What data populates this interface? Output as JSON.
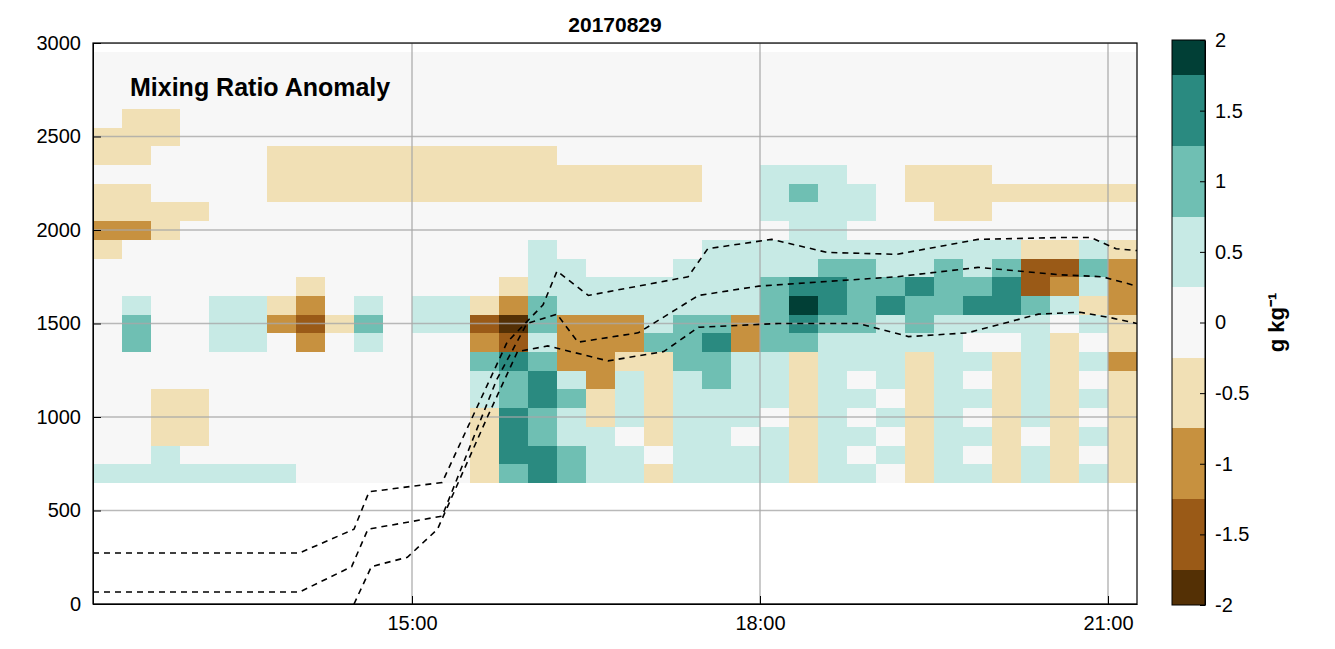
{
  "chart_data": {
    "type": "heatmap",
    "title": "20170829",
    "annotations": [
      "Mixing Ratio Anomaly"
    ],
    "xlim": [
      12.25,
      21.25
    ],
    "ylim": [
      0,
      3000
    ],
    "xticks": [
      {
        "value": 15,
        "label": "15:00"
      },
      {
        "value": 18,
        "label": "18:00"
      },
      {
        "value": 21,
        "label": "21:00"
      }
    ],
    "yticks": [
      0,
      500,
      1000,
      1500,
      2000,
      2500,
      3000
    ],
    "grid": true,
    "x_edges": [
      12.25,
      12.5,
      12.75,
      13,
      13.25,
      13.5,
      13.75,
      14,
      14.25,
      14.5,
      14.75,
      15,
      15.25,
      15.5,
      15.75,
      16,
      16.25,
      16.5,
      16.75,
      17,
      17.25,
      17.5,
      17.75,
      18,
      18.25,
      18.5,
      18.75,
      19,
      19.25,
      19.5,
      19.75,
      20,
      20.25,
      20.5,
      20.75,
      21,
      21.25
    ],
    "y_edges": [
      650,
      750,
      850,
      950,
      1050,
      1150,
      1250,
      1350,
      1450,
      1550,
      1650,
      1750,
      1850,
      1950,
      2050,
      2150,
      2250,
      2350,
      2450,
      2550,
      2650,
      2750,
      2850,
      2950
    ],
    "cells": [
      [
        0.3,
        0.3,
        0.3,
        0.3,
        0.3,
        0.3,
        0.3,
        0,
        0,
        0,
        0,
        0,
        0,
        -0.3,
        1.2,
        1.5,
        0.8,
        0.5,
        0.3,
        -0.3,
        0.3,
        0.5,
        0.3,
        0.3,
        -0.3,
        0.3,
        0.3,
        0,
        -0.5,
        0.3,
        0.3,
        -0.3,
        0.3,
        -0.5,
        0.3,
        -0.3
      ],
      [
        0,
        0,
        0.3,
        0,
        0,
        0,
        0,
        0,
        0,
        0,
        0,
        0,
        0,
        -0.5,
        1.5,
        1.5,
        0.8,
        0.3,
        0.3,
        0,
        0.3,
        0.3,
        0.3,
        0.3,
        -0.3,
        0.3,
        0,
        0.3,
        -0.5,
        0.3,
        0,
        -0.3,
        0.3,
        -0.3,
        0,
        -0.3
      ],
      [
        0,
        0,
        -0.3,
        -0.3,
        0,
        0,
        0,
        0,
        0,
        0,
        0,
        0,
        0,
        -0.5,
        1.5,
        1.2,
        0.5,
        0.3,
        0,
        -0.3,
        0.3,
        0.3,
        0,
        0.3,
        -0.3,
        0.3,
        0.3,
        0,
        -0.3,
        0.3,
        0.3,
        -0.3,
        0,
        -0.5,
        0.3,
        -0.5
      ],
      [
        0,
        0,
        -0.5,
        -0.3,
        0,
        0,
        0,
        0,
        0,
        0,
        0,
        0,
        0,
        -0.3,
        1.5,
        1.2,
        0.5,
        -0.5,
        0.3,
        -0.3,
        0.3,
        0.5,
        0.3,
        0,
        -0.3,
        0.3,
        0,
        0.3,
        -0.5,
        0.3,
        0,
        -0.3,
        0.3,
        -0.3,
        0,
        -0.5
      ],
      [
        0,
        0,
        -0.3,
        -0.3,
        0,
        0,
        0,
        0,
        0,
        0,
        0,
        0,
        0,
        0.3,
        1.2,
        1.5,
        0.8,
        -0.5,
        0.3,
        -0.5,
        0.5,
        0.5,
        0.3,
        0.3,
        -0.5,
        0.3,
        0.3,
        0,
        -0.5,
        0.3,
        0.3,
        -0.5,
        0.3,
        -0.3,
        0.3,
        -0.5
      ],
      [
        0,
        0,
        0,
        0,
        0,
        0,
        0,
        0,
        0,
        0,
        0,
        0,
        0,
        0.5,
        1.2,
        1.5,
        0.5,
        -0.8,
        0.3,
        -0.5,
        0.5,
        0.8,
        0.5,
        0.3,
        -0.5,
        0.3,
        0,
        0.3,
        -0.5,
        0.3,
        0,
        -0.5,
        0.3,
        -0.5,
        0,
        -0.5
      ],
      [
        0,
        0,
        0,
        0,
        0,
        0,
        0,
        0,
        0,
        0,
        0,
        0,
        0,
        0.8,
        1.5,
        1.2,
        -0.8,
        -1.2,
        -0.5,
        -0.5,
        0.8,
        1,
        0.5,
        0.5,
        -0.5,
        0.5,
        0.3,
        0.3,
        -0.3,
        0.3,
        0.3,
        -0.3,
        0.3,
        -0.5,
        0.3,
        -0.8
      ],
      [
        0,
        0.8,
        0,
        0,
        0.3,
        0.3,
        0,
        -0.8,
        0,
        0.3,
        0,
        0,
        0,
        -1.2,
        -1.5,
        0.5,
        -1.2,
        -1.2,
        -1,
        0.8,
        1.2,
        1.5,
        -1,
        0.8,
        1,
        0.5,
        0.5,
        0.3,
        0.3,
        0.3,
        0,
        0,
        0.3,
        -0.3,
        0,
        -0.5
      ],
      [
        0,
        1,
        0,
        0,
        0.5,
        0.3,
        -0.8,
        -1.5,
        -0.3,
        0.8,
        0,
        0.3,
        0.5,
        -1.5,
        -1.8,
        1,
        -0.8,
        -1,
        -0.8,
        0.5,
        1,
        1.2,
        -1.2,
        1,
        1.5,
        1.2,
        1,
        0.5,
        0.8,
        0.3,
        0.3,
        0.3,
        0.3,
        0,
        0.3,
        -0.3
      ],
      [
        0,
        0.5,
        0,
        0,
        0.3,
        0.3,
        -0.5,
        -1,
        0,
        0.3,
        0,
        0.3,
        0.5,
        -0.5,
        -0.8,
        1,
        0.5,
        0.3,
        0.3,
        0.3,
        0.5,
        0.5,
        0.3,
        1.2,
        1.8,
        1.5,
        1.2,
        1.5,
        1.2,
        1,
        1.3,
        1.5,
        0.8,
        0.5,
        -0.3,
        -0.8
      ],
      [
        0,
        0,
        0,
        0,
        0,
        0,
        0,
        -0.3,
        0,
        0,
        0,
        0,
        0,
        0,
        -0.3,
        0.5,
        0.3,
        0.3,
        0.3,
        0.3,
        0.3,
        0.3,
        0.5,
        0.8,
        1.5,
        1.5,
        1.2,
        1.2,
        1.5,
        1.2,
        1,
        1.3,
        -1.5,
        -1.2,
        0.5,
        -1.2
      ],
      [
        0,
        0,
        0,
        0,
        0,
        0,
        0,
        0,
        0,
        0,
        0,
        0,
        0,
        0,
        0,
        0.3,
        0.3,
        0,
        0,
        0,
        0.3,
        0.5,
        0.5,
        0.3,
        0.5,
        0.8,
        0.8,
        0.5,
        0.5,
        0.8,
        0.5,
        1,
        -1.5,
        -1.3,
        1,
        -1.2
      ],
      [
        -0.5,
        0,
        0,
        0,
        0,
        0,
        0,
        0,
        0,
        0,
        0,
        0,
        0,
        0,
        0,
        0.3,
        0,
        0,
        0,
        0,
        0,
        0.3,
        0.3,
        0.3,
        0.3,
        0.3,
        0.3,
        0.3,
        0.3,
        0.3,
        0.3,
        0.3,
        -0.5,
        -0.5,
        0.3,
        -0.3
      ],
      [
        -0.8,
        -0.8,
        -0.3,
        0,
        0,
        0,
        0,
        0,
        0,
        0,
        0,
        0,
        0,
        0,
        0,
        0,
        0,
        0,
        0,
        0,
        0,
        0,
        0,
        0,
        0.3,
        0.3,
        0,
        0,
        0,
        0,
        0,
        0,
        0,
        0,
        0,
        0
      ],
      [
        -0.5,
        -0.5,
        -0.3,
        -0.3,
        0,
        0,
        0,
        0,
        0,
        0,
        0,
        0,
        0,
        0,
        0,
        0,
        0,
        0,
        0,
        0,
        0,
        0,
        0,
        0.3,
        0.5,
        0.5,
        0.3,
        0,
        0,
        -0.3,
        -0.3,
        0,
        0,
        0,
        0,
        0
      ],
      [
        -0.3,
        -0.3,
        0,
        0,
        0,
        0,
        -0.3,
        -0.3,
        -0.3,
        -0.3,
        -0.3,
        -0.3,
        -0.3,
        -0.3,
        -0.3,
        -0.3,
        -0.3,
        -0.3,
        -0.3,
        -0.3,
        -0.3,
        0,
        0,
        0.5,
        0.8,
        0.5,
        0.3,
        0,
        -0.3,
        -0.5,
        -0.5,
        -0.5,
        -0.3,
        -0.3,
        -0.3,
        -0.3
      ],
      [
        0,
        0,
        0,
        0,
        0,
        0,
        -0.3,
        -0.3,
        -0.3,
        -0.3,
        -0.3,
        -0.3,
        -0.3,
        -0.3,
        -0.3,
        -0.3,
        -0.3,
        -0.3,
        -0.3,
        -0.3,
        -0.3,
        0,
        0,
        0.3,
        0.5,
        0.3,
        0,
        0,
        -0.3,
        -0.3,
        -0.3,
        0,
        0,
        0,
        0,
        0
      ],
      [
        -0.3,
        -0.3,
        0,
        0,
        0,
        0,
        -0.3,
        -0.3,
        -0.3,
        -0.3,
        -0.3,
        -0.3,
        -0.3,
        -0.3,
        -0.3,
        -0.3,
        0,
        0,
        0,
        0,
        0,
        0,
        0,
        0,
        0,
        0,
        0,
        0,
        0,
        0,
        0,
        0,
        0,
        0,
        0,
        0
      ],
      [
        -0.3,
        -0.3,
        -0.3,
        0,
        0,
        0,
        0,
        0,
        0,
        0,
        0,
        0,
        0,
        0,
        0,
        0,
        0,
        0,
        0,
        0,
        0,
        0,
        0,
        0,
        0,
        0,
        0,
        0,
        0,
        0,
        0,
        0,
        0,
        0,
        0,
        0
      ],
      [
        0,
        -0.3,
        -0.3,
        0,
        0,
        0,
        0,
        0,
        0,
        0,
        0,
        0,
        0,
        0,
        0,
        0,
        0,
        0,
        0,
        0,
        0,
        0,
        0,
        0,
        0,
        0,
        0,
        0,
        0,
        0,
        0,
        0,
        0,
        0,
        0,
        0
      ],
      [
        0,
        0,
        0,
        0,
        0,
        0,
        0,
        0,
        0,
        0,
        0,
        0,
        0,
        0,
        0,
        0,
        0,
        0,
        0,
        0,
        0,
        0,
        0,
        0,
        0,
        0,
        0,
        0,
        0,
        0,
        0,
        0,
        0,
        0,
        0,
        0
      ],
      [
        0,
        0,
        0,
        0,
        0,
        0,
        0,
        0,
        0,
        0,
        0,
        0,
        0,
        0,
        0,
        0,
        0,
        0,
        0,
        0,
        0,
        0,
        0,
        0,
        0,
        0,
        0,
        0,
        0,
        0,
        0,
        0,
        0,
        0,
        0,
        0
      ],
      [
        0,
        0,
        0,
        0,
        0,
        0,
        0,
        0,
        0,
        0,
        0,
        0,
        0,
        0,
        0,
        0,
        0,
        0,
        0,
        0,
        0,
        0,
        0,
        0,
        0,
        0,
        0,
        0,
        0,
        0,
        0,
        0,
        0,
        0,
        0,
        0
      ]
    ],
    "colorbar": {
      "range": [
        -2,
        2
      ],
      "ticks": [
        -2,
        -1.5,
        -1,
        -0.5,
        0,
        0.5,
        1,
        1.5,
        2
      ],
      "levels": [
        -2,
        -1.75,
        -1.25,
        -0.75,
        -0.25,
        0.25,
        0.75,
        1.25,
        1.75,
        2
      ],
      "colors": [
        "#543005",
        "#9a5a17",
        "#c7913f",
        "#f1e0b5",
        "#f7f7f7",
        "#c7eae5",
        "#6fbfb3",
        "#2a8a80",
        "#013f36"
      ],
      "label": "g kg⁻¹"
    },
    "series": [
      {
        "color": "#000000",
        "line_style": "dashed",
        "x": [
          12.25,
          14.03,
          14.5,
          14.63,
          15.26,
          15.82,
          16.13,
          16.25,
          16.52,
          16.95,
          17.38,
          17.55,
          18.1,
          18.58,
          19.18,
          19.88,
          20.6,
          20.85,
          21.07,
          21.25
        ],
        "values": [
          273,
          273,
          400,
          600,
          650,
          1400,
          1600,
          1780,
          1650,
          1700,
          1750,
          1900,
          1950,
          1880,
          1870,
          1950,
          1960,
          1960,
          1900,
          1890
        ]
      },
      {
        "color": "#000000",
        "line_style": "dashed",
        "x": [
          12.25,
          14.03,
          14.48,
          14.62,
          15.26,
          15.73,
          15.99,
          16.25,
          16.43,
          16.95,
          17.47,
          17.99,
          19.18,
          19.88,
          20.6,
          20.95,
          21.25
        ],
        "values": [
          64,
          64,
          200,
          400,
          470,
          1200,
          1500,
          1550,
          1400,
          1450,
          1650,
          1700,
          1750,
          1800,
          1760,
          1750,
          1700
        ]
      },
      {
        "color": "#000000",
        "line_style": "dashed",
        "x": [
          14.5,
          14.65,
          14.96,
          15.22,
          15.65,
          15.91,
          16.17,
          16.69,
          17.17,
          17.47,
          18.16,
          18.85,
          19.28,
          19.79,
          20.4,
          20.76,
          21.03,
          21.25
        ],
        "values": [
          0,
          200,
          250,
          400,
          1000,
          1350,
          1380,
          1300,
          1350,
          1480,
          1500,
          1500,
          1430,
          1450,
          1550,
          1560,
          1530,
          1500
        ]
      }
    ]
  }
}
